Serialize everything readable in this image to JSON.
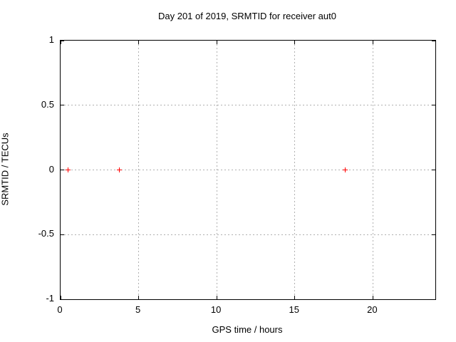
{
  "chart_data": {
    "type": "scatter",
    "title": "Day 201 of 2019, SRMTID for receiver aut0",
    "xlabel": "GPS time / hours",
    "ylabel": "SRMTID / TECUs",
    "xlim": [
      0,
      24
    ],
    "ylim": [
      -1,
      1
    ],
    "xticks": [
      0,
      5,
      10,
      15,
      20
    ],
    "yticks": [
      -1,
      -0.5,
      0,
      0.5,
      1
    ],
    "grid": "dotted",
    "legend_position": "none",
    "series": [
      {
        "name": "SRMTID",
        "marker": "plus",
        "color": "#ff0000",
        "points": [
          {
            "x": 0.5,
            "y": 0.0
          },
          {
            "x": 3.75,
            "y": 0.0
          },
          {
            "x": 18.25,
            "y": 0.0
          }
        ]
      }
    ],
    "colors": {
      "background": "#ffffff",
      "axis": "#000000",
      "grid": "#b0b0b0",
      "text": "#000000",
      "marker": "#ff0000"
    }
  }
}
